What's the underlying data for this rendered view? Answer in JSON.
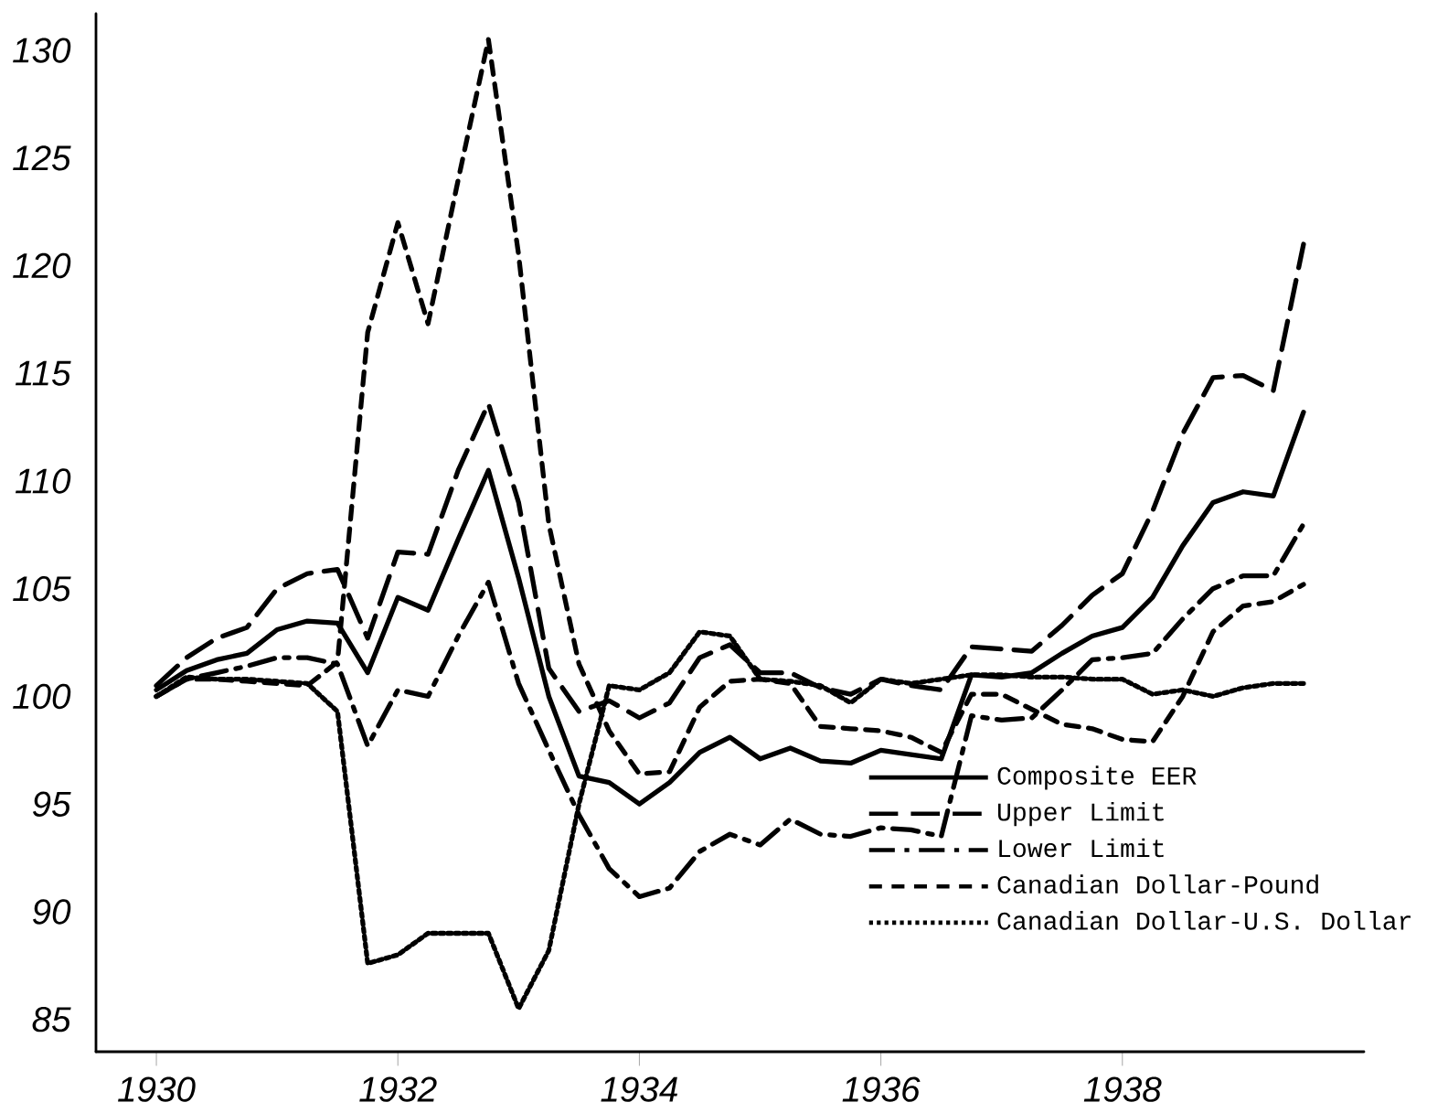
{
  "chart_data": {
    "type": "line",
    "x": [
      1930,
      1930.25,
      1930.5,
      1930.75,
      1931,
      1931.25,
      1931.5,
      1931.75,
      1932,
      1932.25,
      1932.5,
      1932.75,
      1933,
      1933.25,
      1933.5,
      1933.75,
      1934,
      1934.25,
      1934.5,
      1934.75,
      1935,
      1935.25,
      1935.5,
      1935.75,
      1936,
      1936.25,
      1936.5,
      1936.75,
      1937,
      1937.25,
      1937.5,
      1937.75,
      1938,
      1938.25,
      1938.5,
      1938.75,
      1939,
      1939.25,
      1939.5
    ],
    "series": [
      {
        "name": "Composite EER",
        "color": "#000000",
        "line_style": "solid",
        "values": [
          100.3,
          101.2,
          101.7,
          102.0,
          103.1,
          103.5,
          103.4,
          101.1,
          104.6,
          104.0,
          107.3,
          110.5,
          105.5,
          100.0,
          96.3,
          96.0,
          95.0,
          96.0,
          97.4,
          98.1,
          97.1,
          97.6,
          97.0,
          96.9,
          97.5,
          97.3,
          97.1,
          101.0,
          100.9,
          101.1,
          102.0,
          102.8,
          103.2,
          104.6,
          107.0,
          109.0,
          109.5,
          109.3,
          113.2
        ]
      },
      {
        "name": "Upper Limit",
        "color": "#000000",
        "line_style": "long dashed",
        "values": [
          100.5,
          101.8,
          102.7,
          103.2,
          105.0,
          105.7,
          105.9,
          102.7,
          106.7,
          106.6,
          110.5,
          113.6,
          109.0,
          101.3,
          99.3,
          99.8,
          99.0,
          99.7,
          101.8,
          102.4,
          101.1,
          101.1,
          100.4,
          100.1,
          100.8,
          100.5,
          100.3,
          102.3,
          102.2,
          102.1,
          103.3,
          104.7,
          105.7,
          108.6,
          112.2,
          114.8,
          114.9,
          114.2,
          121.0
        ]
      },
      {
        "name": "Lower Limit",
        "color": "#000000",
        "line_style": "dash dot",
        "values": [
          100.0,
          100.8,
          101.1,
          101.4,
          101.8,
          101.8,
          101.5,
          97.7,
          100.3,
          100.0,
          102.8,
          105.3,
          100.6,
          97.5,
          94.5,
          92.0,
          90.7,
          91.1,
          92.8,
          93.6,
          93.1,
          94.3,
          93.6,
          93.5,
          93.9,
          93.8,
          93.5,
          99.1,
          98.9,
          99.0,
          100.3,
          101.7,
          101.8,
          102.0,
          103.6,
          105.0,
          105.6,
          105.6,
          108.0
        ]
      },
      {
        "name": "Canadian Dollar-Pound",
        "color": "#000000",
        "line_style": "dashed",
        "values": [
          100.0,
          100.8,
          100.8,
          100.7,
          100.6,
          100.5,
          101.6,
          116.9,
          122.0,
          117.3,
          124.0,
          130.5,
          120.5,
          108.0,
          101.5,
          98.4,
          96.4,
          96.5,
          99.5,
          100.7,
          100.8,
          100.6,
          98.6,
          98.5,
          98.4,
          98.1,
          97.4,
          100.1,
          100.1,
          99.4,
          98.7,
          98.5,
          98.0,
          97.9,
          100.0,
          103.0,
          104.2,
          104.4,
          105.2
        ]
      },
      {
        "name": "Canadian Dollar-U.S. Dollar",
        "color": "#000000",
        "line_style": "dotted",
        "values": [
          100.0,
          100.9,
          100.8,
          100.8,
          100.7,
          100.6,
          99.3,
          87.6,
          88.0,
          89.0,
          89.0,
          89.0,
          85.5,
          88.2,
          95.0,
          100.5,
          100.3,
          101.1,
          103.0,
          102.8,
          100.8,
          100.7,
          100.5,
          99.7,
          100.8,
          100.6,
          100.8,
          101.0,
          101.0,
          100.9,
          100.9,
          100.8,
          100.8,
          100.1,
          100.3,
          100.0,
          100.4,
          100.6,
          100.6
        ]
      }
    ],
    "xlim": [
      1929.5,
      1940.0
    ],
    "ylim": [
      83.5,
      131.7
    ],
    "xticks": [
      1930,
      1932,
      1934,
      1936,
      1938
    ],
    "yticks": [
      85,
      90,
      95,
      100,
      105,
      110,
      115,
      120,
      125,
      130
    ],
    "legend": "bottom right",
    "grid": false
  }
}
